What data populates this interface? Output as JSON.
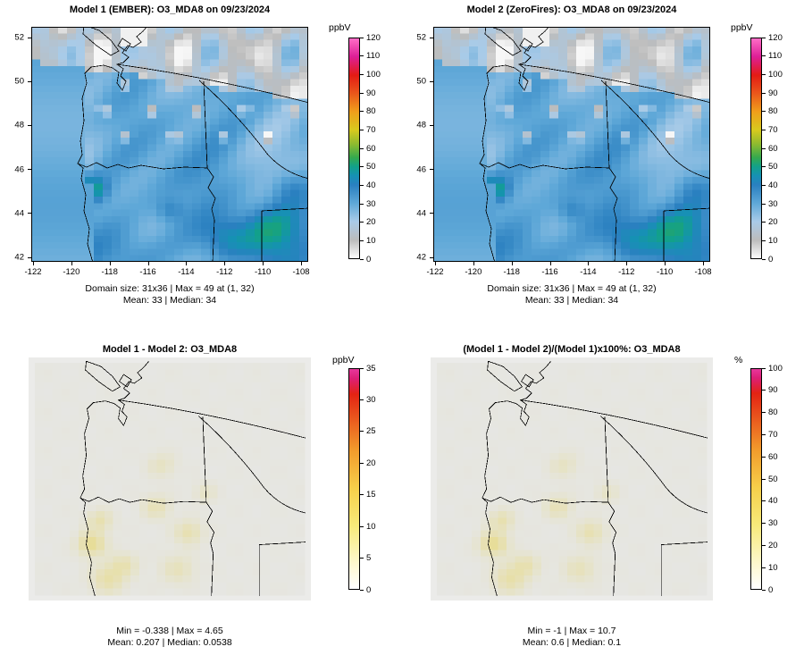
{
  "chart_data": [
    {
      "type": "heatmap",
      "title": "Model 1 (EMBER): O3_MDA8 on 09/23/2024",
      "variable": "O3_MDA8",
      "model_label": "Model 1 (EMBER)",
      "date": "09/23/2024",
      "stats_line1": "Domain size: 31x36 | Max = 49 at (1, 32)",
      "stats_line2": "Mean: 33 |  Median: 34",
      "stats": {
        "domain_size": "31x36",
        "max": 49,
        "max_at": [
          1,
          32
        ],
        "mean": 33,
        "median": 34
      },
      "xlim": [
        -122,
        -108
      ],
      "ylim": [
        42,
        52
      ],
      "x_ticks": [
        "-122",
        "-120",
        "-118",
        "-116",
        "-114",
        "-112",
        "-110",
        "-108"
      ],
      "y_ticks": [
        "42",
        "44",
        "46",
        "48",
        "50",
        "52"
      ],
      "grid": false,
      "legend_position": "right",
      "colorbar": {
        "label": "ppbV",
        "min": 0,
        "max": 120,
        "ticks": [
          0,
          10,
          20,
          30,
          40,
          50,
          60,
          70,
          80,
          90,
          100,
          110,
          120
        ]
      }
    },
    {
      "type": "heatmap",
      "title": "Model 2 (ZeroFires): O3_MDA8 on 09/23/2024",
      "variable": "O3_MDA8",
      "model_label": "Model 2 (ZeroFires)",
      "date": "09/23/2024",
      "stats_line1": "Domain size: 31x36 | Max = 49 at (1, 32)",
      "stats_line2": "Mean: 33 |  Median: 34",
      "stats": {
        "domain_size": "31x36",
        "max": 49,
        "max_at": [
          1,
          32
        ],
        "mean": 33,
        "median": 34
      },
      "xlim": [
        -122,
        -108
      ],
      "ylim": [
        42,
        52
      ],
      "x_ticks": [
        "-122",
        "-120",
        "-118",
        "-116",
        "-114",
        "-112",
        "-110",
        "-108"
      ],
      "y_ticks": [
        "42",
        "44",
        "46",
        "48",
        "50",
        "52"
      ],
      "grid": false,
      "legend_position": "right",
      "colorbar": {
        "label": "ppbV",
        "min": 0,
        "max": 120,
        "ticks": [
          0,
          10,
          20,
          30,
          40,
          50,
          60,
          70,
          80,
          90,
          100,
          110,
          120
        ]
      }
    },
    {
      "type": "heatmap",
      "title": "Model 1 - Model 2: O3_MDA8",
      "variable": "O3_MDA8",
      "stats_line1": "Min = -0.338 | Max = 4.65",
      "stats_line2": "Mean: 0.207 |  Median: 0.0538",
      "stats": {
        "min": -0.338,
        "max": 4.65,
        "mean": 0.207,
        "median": 0.0538
      },
      "grid": false,
      "legend_position": "right",
      "colorbar": {
        "label": "ppbV",
        "min": 0,
        "max": 35,
        "ticks": [
          0,
          5,
          10,
          15,
          20,
          25,
          30,
          35
        ]
      }
    },
    {
      "type": "heatmap",
      "title": "(Model 1 - Model 2)/(Model 1)x100%: O3_MDA8",
      "variable": "O3_MDA8",
      "stats_line1": "Min = -1 | Max = 10.7",
      "stats_line2": "Mean: 0.6 |  Median: 0.1",
      "stats": {
        "min": -1,
        "max": 10.7,
        "mean": 0.6,
        "median": 0.1
      },
      "grid": false,
      "legend_position": "right",
      "colorbar": {
        "label": "%",
        "min": 0,
        "max": 100,
        "ticks": [
          0,
          10,
          20,
          30,
          40,
          50,
          60,
          70,
          80,
          90,
          100
        ]
      }
    }
  ],
  "palette": {
    "background": "#ffffff",
    "map_line_color": "#000000",
    "diff_base": "#e6e6e3",
    "diff_band": "#ebebe9",
    "diff_hot": "#e8d44e",
    "conc_stops": [
      [
        0,
        "#fdfdfd"
      ],
      [
        10,
        "#bcbcbc"
      ],
      [
        20,
        "#a9cbe8"
      ],
      [
        30,
        "#5fa8d8"
      ],
      [
        40,
        "#2a80c0"
      ],
      [
        45,
        "#1691b4"
      ],
      [
        50,
        "#12a189"
      ],
      [
        55,
        "#35a94e"
      ],
      [
        62,
        "#8bba30"
      ],
      [
        70,
        "#d8ca1e"
      ],
      [
        80,
        "#f09e1b"
      ],
      [
        90,
        "#ea571b"
      ],
      [
        100,
        "#e41b14"
      ],
      [
        110,
        "#dd1f97"
      ],
      [
        120,
        "#ff6ec7"
      ]
    ],
    "diff_stops_ppbv": [
      [
        0,
        "#ffffff"
      ],
      [
        4,
        "#fdf8d0"
      ],
      [
        10,
        "#f7ea7a"
      ],
      [
        16,
        "#f6cf4a"
      ],
      [
        22,
        "#f29c2c"
      ],
      [
        27,
        "#ea5a1e"
      ],
      [
        31,
        "#e32313"
      ],
      [
        33.5,
        "#dd1f77"
      ],
      [
        35,
        "#e8379c"
      ]
    ],
    "diff_stops_pct": [
      [
        0,
        "#ffffff"
      ],
      [
        11,
        "#fdf8d0"
      ],
      [
        29,
        "#f7ea7a"
      ],
      [
        46,
        "#f6cf4a"
      ],
      [
        63,
        "#f29c2c"
      ],
      [
        77,
        "#ea5a1e"
      ],
      [
        89,
        "#e32313"
      ],
      [
        96,
        "#dd1f77"
      ],
      [
        100,
        "#e8379c"
      ]
    ]
  },
  "approx_field": {
    "green_bumps": [
      [
        0.215,
        0.69,
        0.055,
        22
      ],
      [
        0.86,
        0.86,
        0.13,
        19
      ],
      [
        0.7,
        0.9,
        0.09,
        15
      ],
      [
        0.5,
        0.78,
        0.05,
        9
      ],
      [
        0.93,
        0.68,
        0.07,
        10
      ],
      [
        0.35,
        0.97,
        0.12,
        10
      ],
      [
        0.08,
        0.96,
        0.07,
        12
      ]
    ],
    "diff_bumps": [
      [
        0.21,
        0.78,
        0.05,
        0.13
      ],
      [
        0.24,
        0.68,
        0.045,
        0.08
      ],
      [
        0.45,
        0.62,
        0.05,
        0.07
      ],
      [
        0.57,
        0.73,
        0.05,
        0.08
      ],
      [
        0.33,
        0.87,
        0.05,
        0.07
      ],
      [
        0.47,
        0.44,
        0.05,
        0.05
      ],
      [
        0.63,
        0.56,
        0.04,
        0.045
      ],
      [
        0.53,
        0.89,
        0.06,
        0.06
      ],
      [
        0.27,
        0.93,
        0.06,
        0.09
      ]
    ]
  }
}
